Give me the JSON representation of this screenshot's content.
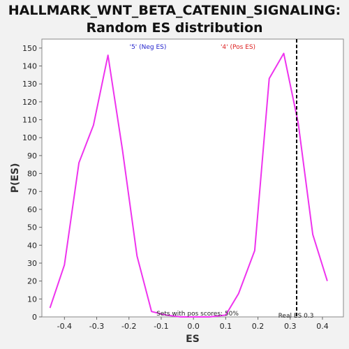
{
  "chart_data": {
    "type": "line",
    "title": "HALLMARK_WNT_BETA_CATENIN_SIGNALING:",
    "subtitle": "Random ES distribution",
    "xlabel": "ES",
    "ylabel": "P(ES)",
    "xlim": [
      -0.47,
      0.465
    ],
    "ylim": [
      0,
      155
    ],
    "x_ticks": [
      "-0.4",
      "-0.3",
      "-0.2",
      "-0.1",
      "0.0",
      "0.1",
      "0.2",
      "0.3",
      "0.4"
    ],
    "y_ticks": [
      "0",
      "10",
      "20",
      "30",
      "40",
      "50",
      "60",
      "70",
      "80",
      "90",
      "100",
      "110",
      "120",
      "130",
      "140",
      "150"
    ],
    "grid": false,
    "series": [
      {
        "color": "#ee33ee",
        "x": [
          -0.445,
          -0.4,
          -0.355,
          -0.31,
          -0.265,
          -0.22,
          -0.175,
          -0.13,
          -0.085,
          -0.04,
          0.0,
          0.05,
          0.1,
          0.14,
          0.19,
          0.235,
          0.28,
          0.325,
          0.37,
          0.415
        ],
        "y": [
          5,
          29,
          86,
          107,
          146,
          93,
          34,
          3,
          1,
          0,
          0,
          0,
          1,
          13,
          37,
          133,
          147,
          108,
          46,
          20
        ]
      }
    ],
    "vertical_marker": {
      "x": 0.32,
      "style": "dashed",
      "color": "#000000"
    },
    "annotations": {
      "neg_es": {
        "text": "'5' (Neg ES)",
        "color": "#2222cc"
      },
      "pos_es": {
        "text": "'4' (Pos ES)",
        "color": "#dd2222"
      },
      "pos_scores": {
        "text": "Sets with pos scores: 50%",
        "color": "#222222"
      },
      "real_es": {
        "text": "Real ES 0.3",
        "color": "#222222"
      }
    }
  }
}
